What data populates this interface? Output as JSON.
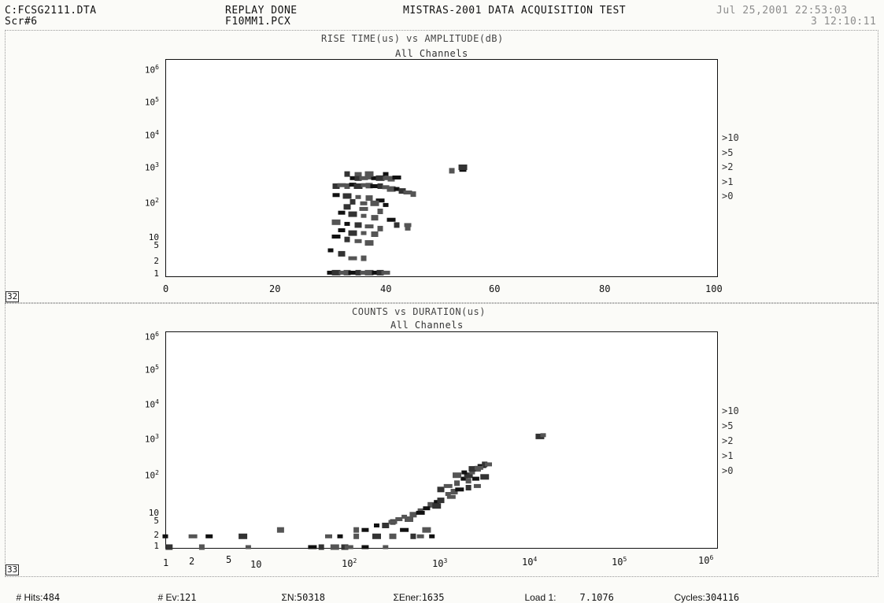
{
  "header": {
    "file": "C:FCSG2111.DTA",
    "screen": "Scr#6",
    "status": "REPLAY DONE",
    "pcx": "F10MM1.PCX",
    "title": "MISTRAS-2001 DATA ACQUISITION TEST",
    "datetime": "Jul 25,2001 22:53:03",
    "elapsed": "3 12:10:11"
  },
  "plots": [
    {
      "title": "RISE TIME(us) vs AMPLITUDE(dB)",
      "subtitle": "All Channels",
      "badge": "32",
      "x_ticks": [
        "0",
        "20",
        "40",
        "60",
        "80",
        "100"
      ],
      "y_ticks": [
        "10^6",
        "10^5",
        "10^4",
        "10^3",
        "10^2",
        "10",
        "5",
        "2",
        "1"
      ],
      "legend": [
        ">10",
        ">5",
        ">2",
        ">1",
        ">0"
      ]
    },
    {
      "title": "COUNTS vs DURATION(us)",
      "subtitle": "All Channels",
      "badge": "33",
      "x_ticks": [
        "1",
        "2",
        "5",
        "10",
        "10^2",
        "10^3",
        "10^4",
        "10^5",
        "10^6"
      ],
      "y_ticks": [
        "10^6",
        "10^5",
        "10^4",
        "10^3",
        "10^2",
        "10",
        "5",
        "2",
        "1"
      ],
      "legend": [
        ">10",
        ">5",
        ">2",
        ">1",
        ">0"
      ]
    }
  ],
  "status_bar": {
    "hits_label": "# Hits:",
    "hits": "484",
    "events_label": "# Ev:",
    "events": "121",
    "sum_n_label": "ΣN:",
    "sum_n": "50318",
    "sum_energy_label": "ΣEner:",
    "sum_energy": "1635",
    "load_label": "Load 1:",
    "load": "7.1076",
    "cycles_label": "Cycles:",
    "cycles": "304116"
  },
  "chart_data": [
    {
      "type": "scatter",
      "title": "RISE TIME(us) vs AMPLITUDE(dB)",
      "subtitle": "All Channels",
      "xlabel": "AMPLITUDE(dB)",
      "ylabel": "RISE TIME(us)",
      "xlim": [
        0,
        100
      ],
      "ylim": [
        1,
        1000000
      ],
      "y_scale": "log",
      "legend": [
        ">10",
        ">5",
        ">2",
        ">1",
        ">0"
      ],
      "legend_position": "right",
      "series": [
        {
          "x": [
            34,
            35,
            36,
            37,
            38,
            39,
            40,
            41,
            42,
            33,
            35,
            37,
            40,
            31,
            32,
            33,
            34,
            35,
            36,
            37,
            38,
            39,
            40,
            41,
            42,
            43,
            44,
            45,
            31,
            33,
            35,
            37,
            39,
            34,
            36,
            38,
            40,
            33,
            36,
            39,
            32,
            34,
            36,
            38,
            41,
            42,
            44,
            31,
            33,
            35,
            37,
            39,
            32,
            34,
            36,
            38,
            31,
            33,
            35,
            37,
            30,
            32,
            34,
            36,
            30,
            31,
            32,
            33,
            34,
            35,
            36,
            37,
            38,
            39,
            40,
            52,
            54,
            54,
            44
          ],
          "y": [
            500,
            500,
            500,
            550,
            500,
            500,
            500,
            480,
            520,
            650,
            650,
            650,
            650,
            300,
            320,
            300,
            330,
            300,
            320,
            310,
            300,
            300,
            280,
            250,
            250,
            220,
            200,
            180,
            170,
            160,
            150,
            140,
            120,
            110,
            100,
            100,
            90,
            80,
            70,
            60,
            55,
            50,
            45,
            40,
            35,
            25,
            25,
            30,
            27,
            25,
            23,
            20,
            18,
            15,
            15,
            14,
            12,
            10,
            9,
            8,
            5,
            4,
            3,
            3,
            1.2,
            1.2,
            1.2,
            1.2,
            1.2,
            1.2,
            1.2,
            1.2,
            1.2,
            1.2,
            1.2,
            800,
            850,
            1000,
            20
          ]
        }
      ]
    },
    {
      "type": "scatter",
      "title": "COUNTS vs DURATION(us)",
      "subtitle": "All Channels",
      "xlabel": "DURATION(us)",
      "ylabel": "COUNTS",
      "xlim": [
        1,
        1000000
      ],
      "ylim": [
        1,
        1000000
      ],
      "x_scale": "log",
      "y_scale": "log",
      "legend": [
        ">10",
        ">5",
        ">2",
        ">1",
        ">0"
      ],
      "legend_position": "right",
      "series": [
        {
          "x": [
            1,
            1.1,
            2,
            2.5,
            3,
            7,
            8,
            18,
            40,
            50,
            60,
            70,
            80,
            90,
            100,
            120,
            150,
            200,
            250,
            300,
            400,
            500,
            600,
            700,
            800,
            1000,
            1200,
            1500,
            1800,
            2000,
            2200,
            2500,
            2800,
            3000,
            3300,
            1500,
            1800,
            2200,
            2600,
            2000,
            2400,
            3000,
            1200,
            1400,
            1600,
            2000,
            2500,
            800,
            900,
            1000,
            1300,
            600,
            700,
            900,
            400,
            500,
            600,
            300,
            350,
            450,
            200,
            250,
            300,
            120,
            150,
            12000,
            13000
          ],
          "y": [
            2,
            1,
            2,
            1,
            2,
            2,
            1,
            3,
            1,
            1,
            2,
            1,
            2,
            1,
            1,
            2,
            1,
            2,
            1,
            2,
            3,
            2,
            2,
            3,
            2,
            40,
            50,
            60,
            80,
            100,
            120,
            150,
            180,
            200,
            200,
            100,
            120,
            150,
            160,
            70,
            80,
            90,
            30,
            35,
            40,
            45,
            50,
            15,
            18,
            20,
            25,
            10,
            12,
            14,
            7,
            8,
            9,
            5,
            6,
            6,
            4,
            4,
            5,
            3,
            3,
            1200,
            1300
          ]
        }
      ]
    }
  ]
}
